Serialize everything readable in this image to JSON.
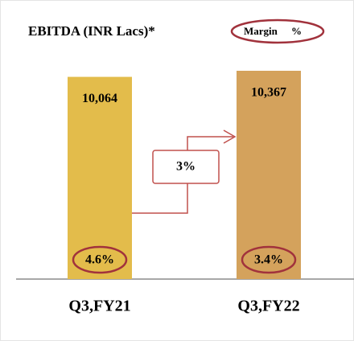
{
  "chart_data": {
    "type": "bar",
    "title": "EBITDA (INR Lacs)*",
    "categories": [
      "Q3,FY21",
      "Q3,FY22"
    ],
    "values": [
      10064,
      10367
    ],
    "value_labels": [
      "10,064",
      "10,367"
    ],
    "colors": [
      "#e3bc4b",
      "#d4a25c"
    ],
    "margin_legend": {
      "name": "Margin",
      "unit": "%"
    },
    "margins": {
      "values": [
        4.6,
        3.4
      ],
      "value_labels": [
        "4.6%",
        "3.4%"
      ]
    },
    "growth": {
      "value": 3,
      "label": "3%"
    }
  }
}
